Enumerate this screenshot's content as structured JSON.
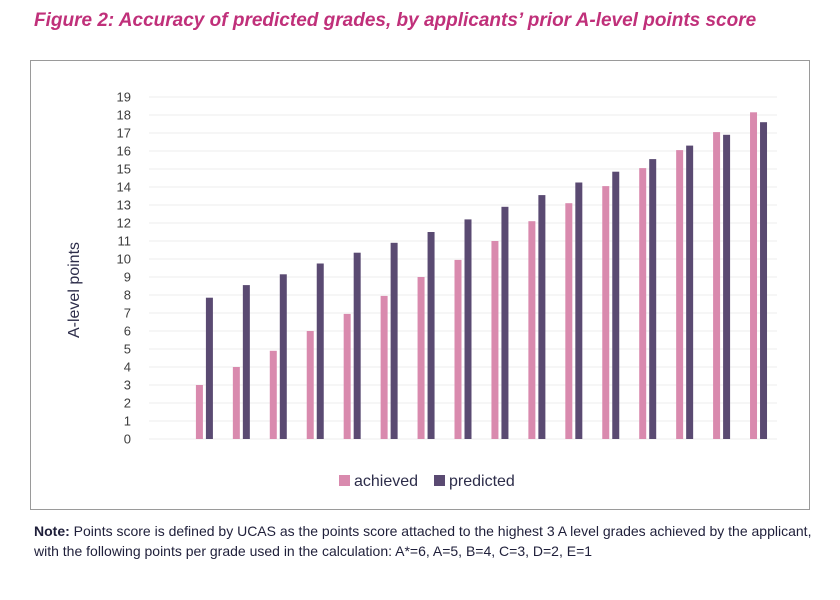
{
  "title": "Figure 2: Accuracy of predicted grades, by applicants’ prior A-level points score",
  "note": {
    "label": "Note:",
    "text": " Points score is defined by UCAS as the points score attached to the highest 3 A level grades achieved by the applicant, with the following points per grade used in the  calculation: A*=6, A=5, B=4, C=3, D=2, E=1"
  },
  "colors": {
    "achieved": "#d98aae",
    "predicted": "#5a4a72",
    "title": "#c0307a",
    "grid": "#eeeeee"
  },
  "chart_data": {
    "type": "bar",
    "title": "",
    "xlabel": "",
    "ylabel": "A-level points",
    "ylim": [
      0,
      19
    ],
    "yticks": [
      0,
      1,
      2,
      3,
      4,
      5,
      6,
      7,
      8,
      9,
      10,
      11,
      12,
      13,
      14,
      15,
      16,
      17,
      18,
      19
    ],
    "grid": true,
    "legend": "bottom",
    "categories": [
      "",
      "",
      "",
      "",
      "",
      "",
      "",
      "",
      "",
      "",
      "",
      "",
      "",
      "",
      "",
      "",
      ""
    ],
    "series": [
      {
        "name": "achieved",
        "values": [
          0,
          3,
          4,
          4.9,
          6,
          6.95,
          7.95,
          9,
          9.95,
          11,
          12.1,
          13.1,
          14.05,
          15.05,
          16.05,
          17.05,
          18.15
        ]
      },
      {
        "name": "predicted",
        "values": [
          0,
          7.85,
          8.55,
          9.15,
          9.75,
          10.35,
          10.9,
          11.5,
          12.2,
          12.9,
          13.55,
          14.25,
          14.85,
          15.55,
          16.3,
          16.9,
          17.6
        ]
      }
    ]
  }
}
